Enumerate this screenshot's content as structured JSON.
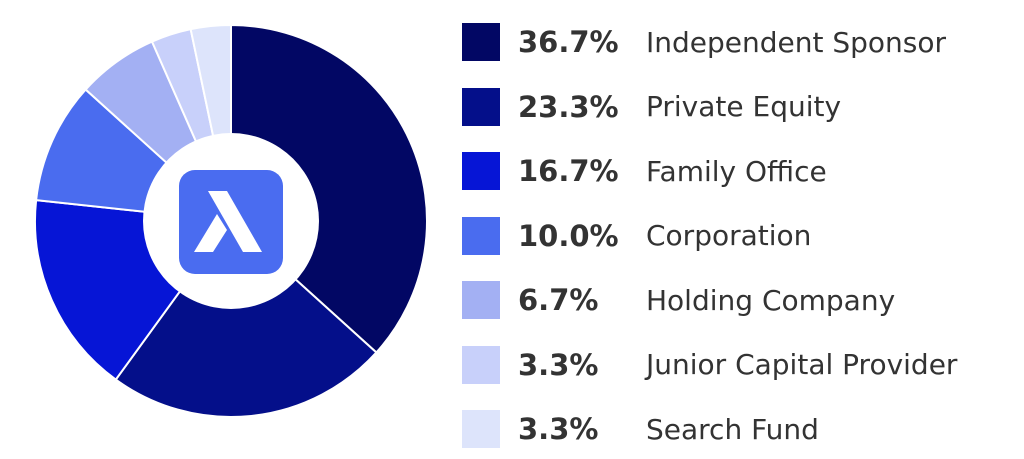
{
  "colors": {
    "background": "#ffffff",
    "text": "#333333",
    "logo_bg": "#4a6cf0",
    "logo_fg": "#ffffff"
  },
  "center_logo": {
    "icon": "stylized-a-logo-icon"
  },
  "chart_data": {
    "type": "pie",
    "style": "donut",
    "legend_position": "right",
    "slices": [
      {
        "label": "Independent Sponsor",
        "value": 36.7,
        "display": "36.7%",
        "color": "#020764"
      },
      {
        "label": "Private Equity",
        "value": 23.3,
        "display": "23.3%",
        "color": "#040f8a"
      },
      {
        "label": "Family Office",
        "value": 16.7,
        "display": "16.7%",
        "color": "#0615d6"
      },
      {
        "label": "Corporation",
        "value": 10.0,
        "display": "10.0%",
        "color": "#4a6cef"
      },
      {
        "label": "Holding Company",
        "value": 6.7,
        "display": "6.7%",
        "color": "#a3b0f3"
      },
      {
        "label": "Junior Capital Provider",
        "value": 3.3,
        "display": "3.3%",
        "color": "#c8d0fa"
      },
      {
        "label": "Search Fund",
        "value": 3.3,
        "display": "3.3%",
        "color": "#dde4fb"
      }
    ]
  }
}
